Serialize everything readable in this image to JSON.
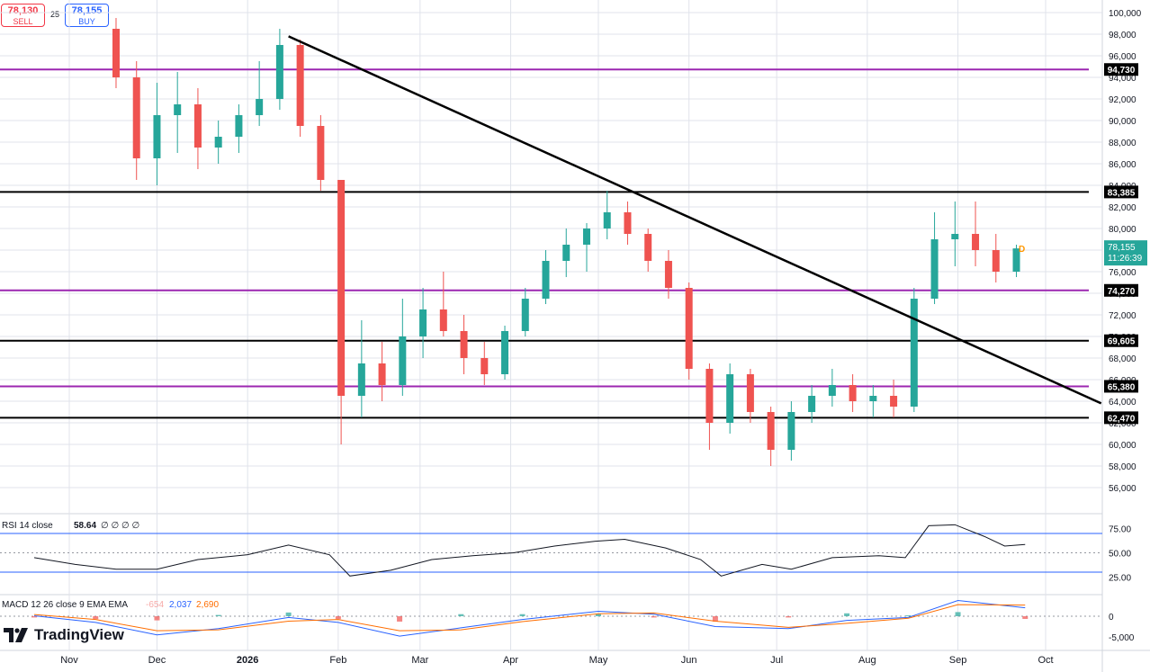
{
  "order_panel": {
    "sell_price": "78,130",
    "sell_label": "SELL",
    "spread": "25",
    "buy_price": "78,155",
    "buy_label": "BUY"
  },
  "branding": {
    "name": "TradingView"
  },
  "colors": {
    "up": "#26a69a",
    "down": "#ef5350",
    "purple_line": "#9c27b0",
    "black_line": "#000000",
    "rsi_line": "#131722",
    "rsi_band": "#2962ff",
    "macd_line": "#2962ff",
    "signal_line": "#ff6d00",
    "last_price_bg": "#26a69a",
    "grid": "#e0e3eb"
  },
  "chart_data": {
    "type": "candlestick",
    "ylim": [
      54000,
      101000
    ],
    "y_ticks": [
      "100,000",
      "98,000",
      "96,000",
      "94,000",
      "92,000",
      "90,000",
      "88,000",
      "86,000",
      "84,000",
      "82,000",
      "80,000",
      "78,000",
      "76,000",
      "74,000",
      "72,000",
      "70,000",
      "68,000",
      "66,000",
      "64,000",
      "62,000",
      "60,000",
      "58,000",
      "56,000"
    ],
    "x_ticks": [
      "Nov",
      "Dec",
      "2026",
      "Feb",
      "Mar",
      "Apr",
      "May",
      "Jun",
      "Jul",
      "Aug",
      "Sep",
      "Oct"
    ],
    "horizontal_levels": [
      {
        "value": 94730,
        "label": "94,730",
        "color": "purple"
      },
      {
        "value": 83385,
        "label": "83,385",
        "color": "black"
      },
      {
        "value": 74270,
        "label": "74,270",
        "color": "purple"
      },
      {
        "value": 69605,
        "label": "69,605",
        "color": "black"
      },
      {
        "value": 65380,
        "label": "65,380",
        "color": "purple"
      },
      {
        "value": 62470,
        "label": "62,470",
        "color": "black"
      }
    ],
    "trendline": {
      "start": {
        "date": "2026-01-15",
        "value": 97800
      },
      "end": {
        "date": "2026-10-20",
        "value": 63800
      }
    },
    "last_price": {
      "value": "78,155",
      "countdown": "11:26:39"
    },
    "marker": "D",
    "ohlc_weekly": [
      {
        "date": "2025-11-17",
        "o": 98500,
        "h": 99500,
        "l": 93000,
        "c": 94000
      },
      {
        "date": "2025-11-24",
        "o": 94000,
        "h": 95500,
        "l": 84500,
        "c": 86500
      },
      {
        "date": "2025-12-01",
        "o": 86500,
        "h": 93500,
        "l": 84000,
        "c": 90500
      },
      {
        "date": "2025-12-08",
        "o": 90500,
        "h": 94500,
        "l": 87000,
        "c": 91500
      },
      {
        "date": "2025-12-15",
        "o": 91500,
        "h": 93000,
        "l": 85500,
        "c": 87500
      },
      {
        "date": "2025-12-22",
        "o": 87500,
        "h": 90000,
        "l": 86000,
        "c": 88500
      },
      {
        "date": "2025-12-29",
        "o": 88500,
        "h": 91500,
        "l": 87000,
        "c": 90500
      },
      {
        "date": "2026-01-05",
        "o": 90500,
        "h": 95500,
        "l": 89500,
        "c": 92000
      },
      {
        "date": "2026-01-12",
        "o": 92000,
        "h": 98500,
        "l": 91000,
        "c": 97000
      },
      {
        "date": "2026-01-19",
        "o": 97000,
        "h": 97500,
        "l": 88500,
        "c": 89500
      },
      {
        "date": "2026-01-26",
        "o": 89500,
        "h": 90500,
        "l": 83500,
        "c": 84500
      },
      {
        "date": "2026-02-02",
        "o": 84500,
        "h": 79500,
        "l": 60000,
        "c": 64500
      },
      {
        "date": "2026-02-09",
        "o": 64500,
        "h": 71500,
        "l": 62500,
        "c": 67500
      },
      {
        "date": "2026-02-16",
        "o": 67500,
        "h": 69500,
        "l": 64000,
        "c": 65500
      },
      {
        "date": "2026-02-23",
        "o": 65500,
        "h": 73500,
        "l": 64500,
        "c": 70000
      },
      {
        "date": "2026-03-02",
        "o": 70000,
        "h": 74500,
        "l": 68000,
        "c": 72500
      },
      {
        "date": "2026-03-09",
        "o": 72500,
        "h": 76000,
        "l": 70000,
        "c": 70500
      },
      {
        "date": "2026-03-16",
        "o": 70500,
        "h": 72000,
        "l": 66500,
        "c": 68000
      },
      {
        "date": "2026-03-23",
        "o": 68000,
        "h": 69500,
        "l": 65500,
        "c": 66500
      },
      {
        "date": "2026-03-30",
        "o": 66500,
        "h": 71000,
        "l": 66000,
        "c": 70500
      },
      {
        "date": "2026-04-06",
        "o": 70500,
        "h": 74500,
        "l": 70000,
        "c": 73500
      },
      {
        "date": "2026-04-13",
        "o": 73500,
        "h": 78000,
        "l": 73000,
        "c": 77000
      },
      {
        "date": "2026-04-20",
        "o": 77000,
        "h": 80000,
        "l": 75500,
        "c": 78500
      },
      {
        "date": "2026-04-27",
        "o": 78500,
        "h": 80500,
        "l": 76000,
        "c": 80000
      },
      {
        "date": "2026-05-04",
        "o": 80000,
        "h": 83500,
        "l": 79000,
        "c": 81500
      },
      {
        "date": "2026-05-11",
        "o": 81500,
        "h": 82500,
        "l": 78500,
        "c": 79500
      },
      {
        "date": "2026-05-18",
        "o": 79500,
        "h": 80000,
        "l": 76000,
        "c": 77000
      },
      {
        "date": "2026-05-25",
        "o": 77000,
        "h": 78000,
        "l": 73500,
        "c": 74500
      },
      {
        "date": "2026-06-01",
        "o": 74500,
        "h": 75000,
        "l": 66000,
        "c": 67000
      },
      {
        "date": "2026-06-08",
        "o": 67000,
        "h": 67500,
        "l": 59500,
        "c": 62000
      },
      {
        "date": "2026-06-15",
        "o": 62000,
        "h": 67500,
        "l": 61000,
        "c": 66500
      },
      {
        "date": "2026-06-22",
        "o": 66500,
        "h": 67000,
        "l": 62000,
        "c": 63000
      },
      {
        "date": "2026-06-29",
        "o": 63000,
        "h": 63500,
        "l": 58000,
        "c": 59500
      },
      {
        "date": "2026-07-06",
        "o": 59500,
        "h": 64000,
        "l": 58500,
        "c": 63000
      },
      {
        "date": "2026-07-13",
        "o": 63000,
        "h": 65500,
        "l": 62000,
        "c": 64500
      },
      {
        "date": "2026-07-20",
        "o": 64500,
        "h": 67000,
        "l": 63500,
        "c": 65500
      },
      {
        "date": "2026-07-27",
        "o": 65500,
        "h": 66500,
        "l": 63000,
        "c": 64000
      },
      {
        "date": "2026-08-03",
        "o": 64000,
        "h": 65500,
        "l": 62500,
        "c": 64500
      },
      {
        "date": "2026-08-10",
        "o": 64500,
        "h": 66000,
        "l": 62500,
        "c": 63500
      },
      {
        "date": "2026-08-17",
        "o": 63500,
        "h": 74500,
        "l": 63000,
        "c": 73500
      },
      {
        "date": "2026-08-24",
        "o": 73500,
        "h": 81500,
        "l": 73000,
        "c": 79000
      },
      {
        "date": "2026-08-31",
        "o": 79000,
        "h": 82500,
        "l": 76500,
        "c": 79500
      },
      {
        "date": "2026-09-07",
        "o": 79500,
        "h": 82500,
        "l": 76500,
        "c": 78000
      },
      {
        "date": "2026-09-14",
        "o": 78000,
        "h": 79500,
        "l": 75000,
        "c": 76000
      },
      {
        "date": "2026-09-21",
        "o": 76000,
        "h": 78500,
        "l": 75500,
        "c": 78155
      }
    ],
    "rsi": {
      "label": "RSI 14 close",
      "value": "58.64",
      "placeholders": "∅ ∅ ∅ ∅",
      "levels": [
        "75.00",
        "50.00",
        "25.00"
      ],
      "upper": 70,
      "lower": 30,
      "series": [
        {
          "date": "2025-10-20",
          "v": 45
        },
        {
          "date": "2025-11-03",
          "v": 38
        },
        {
          "date": "2025-11-17",
          "v": 33
        },
        {
          "date": "2025-12-01",
          "v": 33
        },
        {
          "date": "2025-12-15",
          "v": 43
        },
        {
          "date": "2026-01-01",
          "v": 48
        },
        {
          "date": "2026-01-15",
          "v": 58
        },
        {
          "date": "2026-01-29",
          "v": 48
        },
        {
          "date": "2026-02-05",
          "v": 26
        },
        {
          "date": "2026-02-19",
          "v": 32
        },
        {
          "date": "2026-03-05",
          "v": 43
        },
        {
          "date": "2026-03-19",
          "v": 47
        },
        {
          "date": "2026-04-02",
          "v": 50
        },
        {
          "date": "2026-04-16",
          "v": 57
        },
        {
          "date": "2026-04-30",
          "v": 62
        },
        {
          "date": "2026-05-10",
          "v": 64
        },
        {
          "date": "2026-05-24",
          "v": 55
        },
        {
          "date": "2026-06-05",
          "v": 43
        },
        {
          "date": "2026-06-12",
          "v": 26
        },
        {
          "date": "2026-06-26",
          "v": 38
        },
        {
          "date": "2026-07-06",
          "v": 33
        },
        {
          "date": "2026-07-20",
          "v": 45
        },
        {
          "date": "2026-08-05",
          "v": 47
        },
        {
          "date": "2026-08-14",
          "v": 45
        },
        {
          "date": "2026-08-22",
          "v": 78
        },
        {
          "date": "2026-08-31",
          "v": 79
        },
        {
          "date": "2026-09-10",
          "v": 67
        },
        {
          "date": "2026-09-17",
          "v": 57
        },
        {
          "date": "2026-09-24",
          "v": 58.64
        }
      ]
    },
    "macd": {
      "label": "MACD 12 26 close 9 EMA EMA",
      "hist_value": "-654",
      "macd_value": "2,037",
      "signal_value": "2,690",
      "ticks": [
        "0",
        "-5,000"
      ],
      "macd_series": [
        {
          "date": "2025-10-20",
          "v": 100
        },
        {
          "date": "2025-11-10",
          "v": -1500
        },
        {
          "date": "2025-12-01",
          "v": -4500
        },
        {
          "date": "2025-12-22",
          "v": -3000
        },
        {
          "date": "2026-01-15",
          "v": -300
        },
        {
          "date": "2026-02-01",
          "v": -1500
        },
        {
          "date": "2026-02-22",
          "v": -4800
        },
        {
          "date": "2026-03-15",
          "v": -2800
        },
        {
          "date": "2026-04-05",
          "v": -800
        },
        {
          "date": "2026-05-01",
          "v": 1200
        },
        {
          "date": "2026-05-20",
          "v": 500
        },
        {
          "date": "2026-06-10",
          "v": -2500
        },
        {
          "date": "2026-07-05",
          "v": -3000
        },
        {
          "date": "2026-07-25",
          "v": -1000
        },
        {
          "date": "2026-08-15",
          "v": -300
        },
        {
          "date": "2026-09-01",
          "v": 3800
        },
        {
          "date": "2026-09-24",
          "v": 2037
        }
      ],
      "signal_series": [
        {
          "date": "2025-10-20",
          "v": 400
        },
        {
          "date": "2025-11-10",
          "v": -800
        },
        {
          "date": "2025-12-01",
          "v": -3500
        },
        {
          "date": "2025-12-22",
          "v": -3300
        },
        {
          "date": "2026-01-15",
          "v": -1200
        },
        {
          "date": "2026-02-01",
          "v": -800
        },
        {
          "date": "2026-02-22",
          "v": -3500
        },
        {
          "date": "2026-03-15",
          "v": -3300
        },
        {
          "date": "2026-04-05",
          "v": -1300
        },
        {
          "date": "2026-05-01",
          "v": 600
        },
        {
          "date": "2026-05-20",
          "v": 800
        },
        {
          "date": "2026-06-10",
          "v": -1200
        },
        {
          "date": "2026-07-05",
          "v": -2700
        },
        {
          "date": "2026-07-25",
          "v": -1700
        },
        {
          "date": "2026-08-15",
          "v": -500
        },
        {
          "date": "2026-09-01",
          "v": 2800
        },
        {
          "date": "2026-09-24",
          "v": 2690
        }
      ]
    }
  }
}
